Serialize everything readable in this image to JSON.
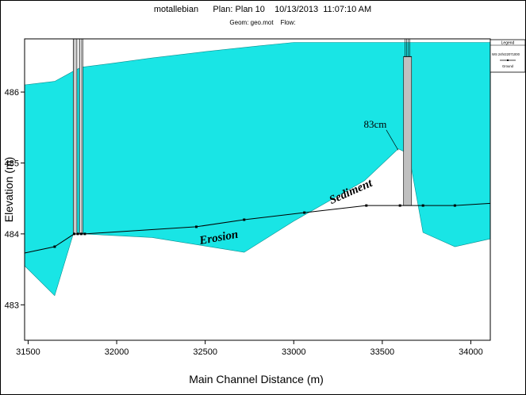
{
  "chart_data": {
    "type": "area",
    "title": "motallebian      Plan: Plan 10    10/13/2013  11:07:10 AM",
    "subtitle": "Geom: geo.mot    Flow:",
    "xlabel": "Main Channel Distance (m)",
    "ylabel": "Elevation (m)",
    "xlim": [
      31480,
      34110
    ],
    "ylim": [
      482.5,
      486.75
    ],
    "x_ticks": [
      31500,
      32000,
      32500,
      33000,
      33500,
      34000
    ],
    "y_ticks": [
      483,
      484,
      485,
      486
    ],
    "grid": false,
    "legend": {
      "placement": "top-right",
      "title": "Legend",
      "entries": [
        "WS 24hr22071000",
        "Ground"
      ]
    },
    "water_surface": {
      "color": "#19e5e5",
      "x": [
        31480,
        31650,
        31760,
        31800,
        31960,
        32200,
        32500,
        32800,
        33000,
        33300,
        33600,
        34110
      ],
      "y": [
        486.1,
        486.15,
        486.3,
        486.35,
        486.4,
        486.48,
        486.57,
        486.65,
        486.7,
        486.7,
        486.7,
        486.7
      ]
    },
    "water_bottom": {
      "x": [
        31480,
        31650,
        31755,
        31770,
        31800,
        31810,
        32200,
        32720,
        33000,
        33400,
        33590,
        33650,
        33730,
        33910,
        34110
      ],
      "y": [
        483.55,
        483.13,
        484.0,
        484.0,
        484.0,
        484.0,
        483.95,
        483.74,
        484.18,
        484.75,
        485.2,
        485.13,
        484.02,
        483.82,
        483.93
      ]
    },
    "channel_bed": {
      "name": "Ground",
      "color": "#000000",
      "x": [
        31480,
        31650,
        31760,
        31780,
        31800,
        31820,
        32450,
        32720,
        33060,
        33410,
        33600,
        33730,
        33910,
        34110
      ],
      "y": [
        483.73,
        483.82,
        484.0,
        484.0,
        484.0,
        484.0,
        484.1,
        484.2,
        484.3,
        484.4,
        484.4,
        484.4,
        484.4,
        484.43
      ],
      "marker_x": [
        31650,
        31760,
        31780,
        31800,
        31820,
        32450,
        32720,
        33060,
        33410,
        33600,
        33730,
        33910
      ]
    },
    "structures": [
      {
        "kind": "weir",
        "x_start": 31755,
        "x_end": 31775,
        "y_bottom": 484.0,
        "y_top": 486.75
      },
      {
        "kind": "weir",
        "x_start": 31790,
        "x_end": 31808,
        "y_bottom": 484.0,
        "y_top": 486.75
      },
      {
        "kind": "dam",
        "x_start": 33620,
        "x_end": 33665,
        "y_bottom": 484.4,
        "y_top": 486.5,
        "color": "#c0c0c0"
      }
    ],
    "annotations": [
      {
        "text": "83cm",
        "x": 33460,
        "y": 485.5
      },
      {
        "text": "Sediment",
        "x": 33330,
        "y": 484.55
      },
      {
        "text": "Erosion",
        "x": 32580,
        "y": 483.9
      }
    ]
  }
}
